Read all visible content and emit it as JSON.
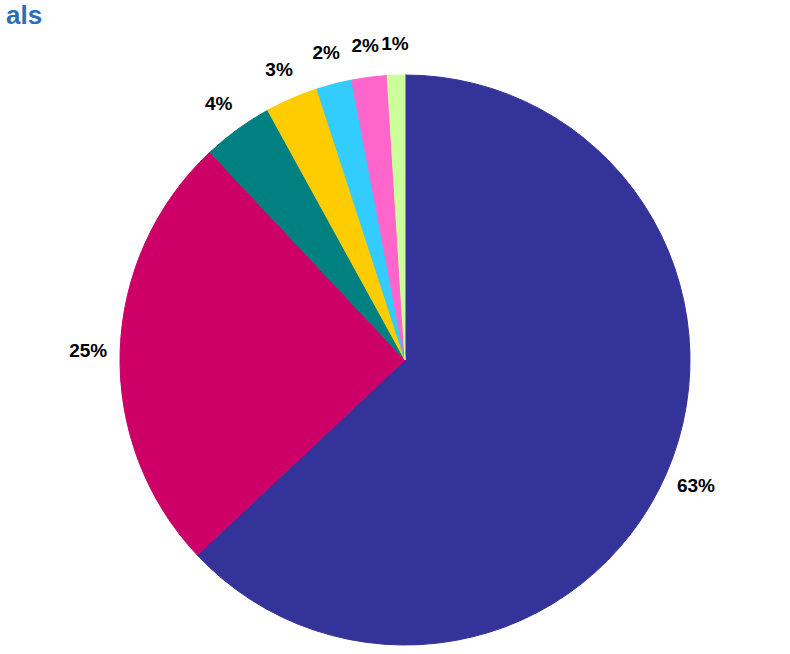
{
  "chart_data": {
    "type": "pie",
    "title": "als",
    "values": [
      63,
      25,
      4,
      3,
      2,
      2,
      1
    ],
    "value_labels": [
      "63%",
      "25%",
      "4%",
      "3%",
      "2%",
      "2%",
      "1%"
    ],
    "colors": [
      "#333399",
      "#cc0066",
      "#008080",
      "#ffcc00",
      "#33ccff",
      "#ff66cc",
      "#ccff99"
    ],
    "data_labels": true
  }
}
